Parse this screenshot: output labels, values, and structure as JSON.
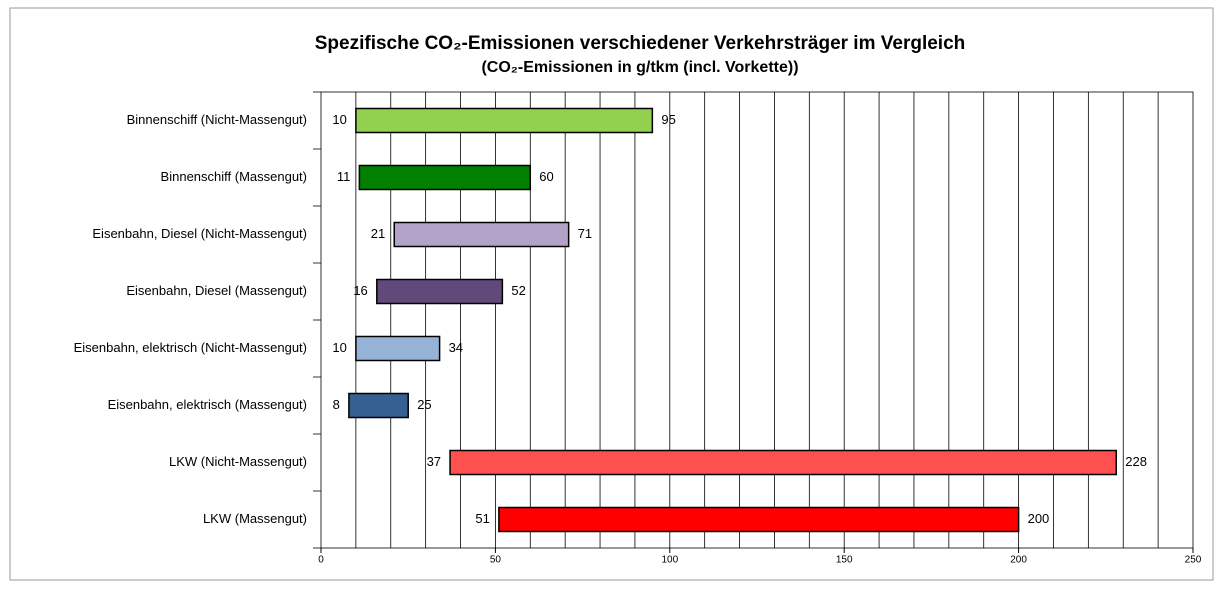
{
  "chart_data": {
    "type": "floating-bar",
    "title": "Spezifische CO₂-Emissionen verschiedener Verkehrsträger im Vergleich",
    "subtitle": "(CO₂-Emissionen in g/tkm (incl. Vorkette))",
    "categories": [
      "Binnenschiff (Nicht-Massengut)",
      "Binnenschiff (Massengut)",
      "Eisenbahn, Diesel (Nicht-Massengut)",
      "Eisenbahn, Diesel (Massengut)",
      "Eisenbahn, elektrisch (Nicht-Massengut)",
      "Eisenbahn, elektrisch (Massengut)",
      "LKW (Nicht-Massengut)",
      "LKW (Massengut)"
    ],
    "low": [
      10,
      11,
      21,
      16,
      10,
      8,
      37,
      51
    ],
    "high": [
      95,
      60,
      71,
      52,
      34,
      25,
      228,
      200
    ],
    "colors": [
      "#92d050",
      "#007f00",
      "#b3a2c7",
      "#604a7b",
      "#95b3d7",
      "#366092",
      "#ff5050",
      "#ff0000"
    ],
    "xlim": [
      0,
      250
    ],
    "xticks": [
      0,
      50,
      100,
      150,
      200,
      250
    ],
    "xgrid": [
      10,
      20,
      30,
      40,
      50,
      60,
      70,
      80,
      90,
      100,
      110,
      120,
      130,
      140,
      150,
      160,
      170,
      180,
      190,
      200,
      210,
      220,
      230,
      240
    ]
  }
}
